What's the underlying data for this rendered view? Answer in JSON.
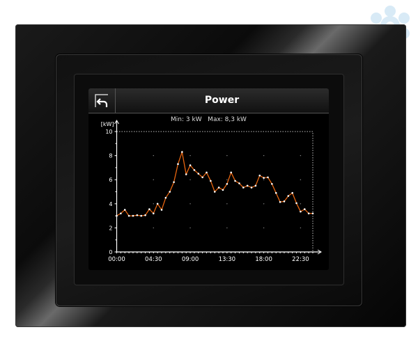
{
  "header": {
    "title": "Power",
    "back_icon": "back-arrow-icon"
  },
  "stats": {
    "text": "Min: 3 kW   Max: 8,3 kW"
  },
  "watermark": {
    "icon": "flower-logo-icon",
    "color": "#d8eaf6"
  },
  "chart_data": {
    "type": "line",
    "title": "Power",
    "ylabel": "[kW]",
    "xlabel": "",
    "ylim": [
      0,
      10
    ],
    "yticks": [
      "0",
      "2",
      "4",
      "6",
      "8",
      "10"
    ],
    "xticks": [
      "00:00",
      "04:30",
      "09:00",
      "13:30",
      "18:00",
      "22:30"
    ],
    "grid": "dotted",
    "line_color": "#e8650f",
    "marker_color": "#ffffff",
    "x": [
      "00:00",
      "00:30",
      "01:00",
      "01:30",
      "02:00",
      "02:30",
      "03:00",
      "03:30",
      "04:00",
      "04:30",
      "05:00",
      "05:30",
      "06:00",
      "06:30",
      "07:00",
      "07:30",
      "08:00",
      "08:30",
      "09:00",
      "09:30",
      "10:00",
      "10:30",
      "11:00",
      "11:30",
      "12:00",
      "12:30",
      "13:00",
      "13:30",
      "14:00",
      "14:30",
      "15:00",
      "15:30",
      "16:00",
      "16:30",
      "17:00",
      "17:30",
      "18:00",
      "18:30",
      "19:00",
      "19:30",
      "20:00",
      "20:30",
      "21:00",
      "21:30",
      "22:00",
      "22:30",
      "23:00",
      "23:30",
      "24:00"
    ],
    "values": [
      3.0,
      3.2,
      3.5,
      3.0,
      3.0,
      3.05,
      3.0,
      3.05,
      3.55,
      3.2,
      4.0,
      3.5,
      4.5,
      5.0,
      5.8,
      7.3,
      8.3,
      6.45,
      7.2,
      6.8,
      6.5,
      6.2,
      6.6,
      5.9,
      5.0,
      5.35,
      5.15,
      5.65,
      6.6,
      5.9,
      5.7,
      5.35,
      5.5,
      5.35,
      5.5,
      6.35,
      6.15,
      6.2,
      5.65,
      4.9,
      4.15,
      4.2,
      4.65,
      4.9,
      4.05,
      3.35,
      3.55,
      3.2,
      3.2
    ]
  }
}
